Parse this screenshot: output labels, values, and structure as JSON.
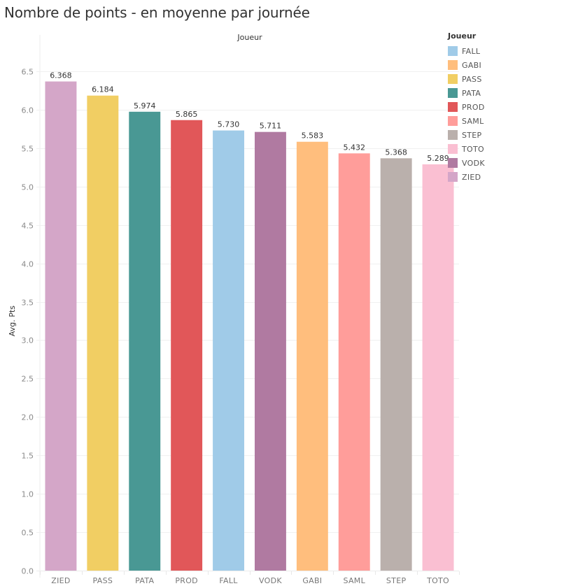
{
  "header": {
    "title": "Nombre de points - en moyenne par journée",
    "column_header": "Joueur"
  },
  "legend": {
    "title": "Joueur",
    "items": [
      {
        "label": "FALL",
        "color": "#a0cbe8"
      },
      {
        "label": "GABI",
        "color": "#ffbe7d"
      },
      {
        "label": "PASS",
        "color": "#f1ce63"
      },
      {
        "label": "PATA",
        "color": "#499894"
      },
      {
        "label": "PROD",
        "color": "#e15759"
      },
      {
        "label": "SAML",
        "color": "#ff9d9a"
      },
      {
        "label": "STEP",
        "color": "#bab0ac"
      },
      {
        "label": "TOTO",
        "color": "#fabfd2"
      },
      {
        "label": "VODK",
        "color": "#b07aa1"
      },
      {
        "label": "ZIED",
        "color": "#d4a6c8"
      }
    ]
  },
  "chart_data": {
    "type": "bar",
    "title": "Nombre de points - en moyenne par journée",
    "column_header": "Joueur",
    "xlabel": "",
    "ylabel": "Avg. Pts",
    "ylim": [
      0,
      6.5
    ],
    "yticks": [
      "0.0",
      "0.5",
      "1.0",
      "1.5",
      "2.0",
      "2.5",
      "3.0",
      "3.5",
      "4.0",
      "4.5",
      "5.0",
      "5.5",
      "6.0",
      "6.5"
    ],
    "ytick_values": [
      0,
      0.5,
      1,
      1.5,
      2,
      2.5,
      3,
      3.5,
      4,
      4.5,
      5,
      5.5,
      6,
      6.5
    ],
    "grid": true,
    "legend_position": "right",
    "categories": [
      "ZIED",
      "PASS",
      "PATA",
      "PROD",
      "FALL",
      "VODK",
      "GABI",
      "SAML",
      "STEP",
      "TOTO"
    ],
    "values": [
      6.368,
      6.184,
      5.974,
      5.865,
      5.73,
      5.711,
      5.583,
      5.432,
      5.368,
      5.289
    ],
    "value_labels": [
      "6.368",
      "6.184",
      "5.974",
      "5.865",
      "5.730",
      "5.711",
      "5.583",
      "5.432",
      "5.368",
      "5.289"
    ],
    "colors": [
      "#d4a6c8",
      "#f1ce63",
      "#499894",
      "#e15759",
      "#a0cbe8",
      "#b07aa1",
      "#ffbe7d",
      "#ff9d9a",
      "#bab0ac",
      "#fabfd2"
    ]
  }
}
